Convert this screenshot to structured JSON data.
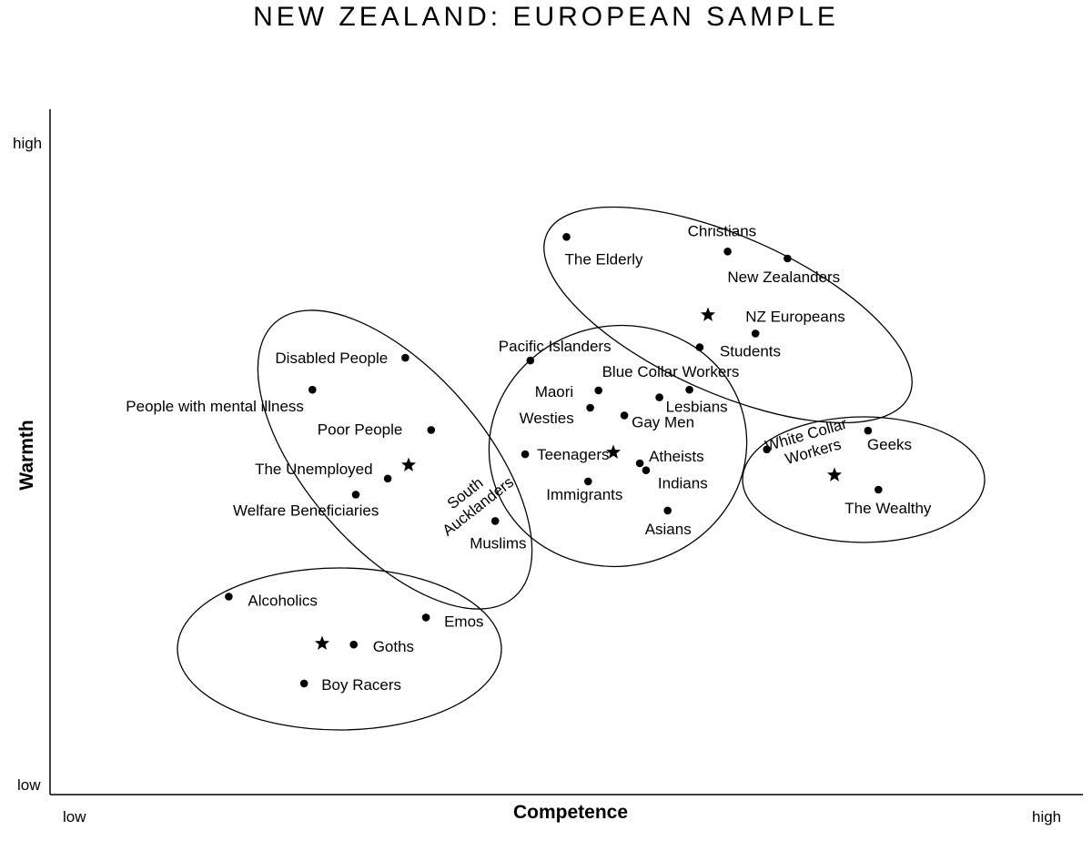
{
  "chart_data": {
    "type": "scatter",
    "title": "NEW ZEALAND: EUROPEAN SAMPLE",
    "xlabel": "Competence",
    "ylabel": "Warmth",
    "x_low_label": "low",
    "x_high_label": "high",
    "y_low_label": "low",
    "y_high_label": "high",
    "xlim": [
      0,
      1
    ],
    "ylim": [
      0,
      1
    ],
    "grid": false,
    "points": [
      {
        "name": "The Elderly",
        "x": 0.5,
        "y": 0.803
      },
      {
        "name": "Christians",
        "x": 0.656,
        "y": 0.782
      },
      {
        "name": "New Zealanders",
        "x": 0.714,
        "y": 0.772
      },
      {
        "name": "NZ Europeans",
        "x": 0.683,
        "y": 0.664
      },
      {
        "name": "Students",
        "x": 0.629,
        "y": 0.644
      },
      {
        "name": "Pacific Islanders",
        "x": 0.465,
        "y": 0.625
      },
      {
        "name": "Disabled People",
        "x": 0.344,
        "y": 0.629
      },
      {
        "name": "People with mental illness",
        "x": 0.254,
        "y": 0.583
      },
      {
        "name": "Maori",
        "x": 0.531,
        "y": 0.582
      },
      {
        "name": "Blue Collar Workers",
        "x": 0.619,
        "y": 0.583
      },
      {
        "name": "Lesbians",
        "x": 0.59,
        "y": 0.572
      },
      {
        "name": "Westies",
        "x": 0.523,
        "y": 0.557
      },
      {
        "name": "Gay Men",
        "x": 0.556,
        "y": 0.546
      },
      {
        "name": "Poor People",
        "x": 0.369,
        "y": 0.525
      },
      {
        "name": "Teenagers",
        "x": 0.46,
        "y": 0.49
      },
      {
        "name": "Atheists",
        "x": 0.571,
        "y": 0.477
      },
      {
        "name": "Indians",
        "x": 0.577,
        "y": 0.467
      },
      {
        "name": "Immigrants",
        "x": 0.521,
        "y": 0.451
      },
      {
        "name": "The Unemployed",
        "x": 0.327,
        "y": 0.455
      },
      {
        "name": "Welfare Beneficiaries",
        "x": 0.296,
        "y": 0.432
      },
      {
        "name": "Asians",
        "x": 0.598,
        "y": 0.409
      },
      {
        "name": "Muslims",
        "x": 0.431,
        "y": 0.394
      },
      {
        "name": "White Collar Workers",
        "x": 0.694,
        "y": 0.497
      },
      {
        "name": "Geeks",
        "x": 0.792,
        "y": 0.524
      },
      {
        "name": "The Wealthy",
        "x": 0.802,
        "y": 0.439
      },
      {
        "name": "Alcoholics",
        "x": 0.173,
        "y": 0.285
      },
      {
        "name": "Emos",
        "x": 0.364,
        "y": 0.255
      },
      {
        "name": "Goths",
        "x": 0.294,
        "y": 0.216
      },
      {
        "name": "Boy Racers",
        "x": 0.246,
        "y": 0.16
      }
    ],
    "cluster_labels": [
      {
        "name": "South Aucklanders"
      },
      {
        "name": "White Collar Workers"
      }
    ]
  }
}
